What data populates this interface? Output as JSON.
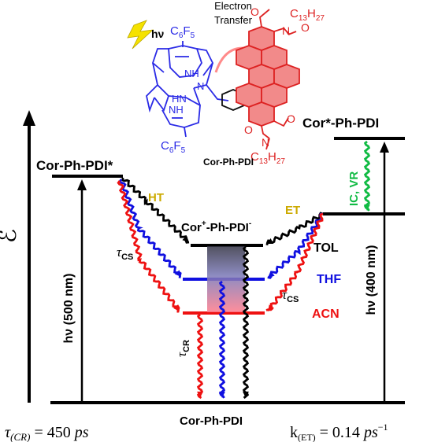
{
  "colors": {
    "black": "#000000",
    "blue": "#1010e0",
    "red": "#ee1111",
    "gold": "#ccaa00",
    "green": "#11bb44",
    "pink": "#ff8a8a",
    "porphyrin": "#2a2ae6",
    "pdi_fill": "#f28a8a",
    "pdi_stroke": "#dd2222",
    "bolt": "#f5e200"
  },
  "molecule": {
    "light_label": "hν",
    "c6f5_top": "C",
    "c6f5_top_sub": "6",
    "c6f5_top_f": "F",
    "c6f5_top_sub2": "5",
    "c6f5_bottom": "C",
    "c6f5_bottom_sub": "6",
    "c6f5_bottom_f": "F",
    "c6f5_bottom_sub2": "5",
    "nh_top": "NH",
    "nh_mid": "NH",
    "n_mid": "N",
    "hn_bot": "HN",
    "electron_transfer": "Electron",
    "electron_transfer2": "Transfer",
    "c13_top": "C",
    "c13_top_sub": "13",
    "c13_top_h": "H",
    "c13_top_sub2": "27",
    "c13_bot": "C",
    "c13_bot_sub": "13",
    "c13_bot_h": "H",
    "c13_bot_sub2": "27",
    "n_top": "N",
    "n_bot": "N",
    "o_labels": [
      "O",
      "O",
      "O",
      "O"
    ],
    "caption": "Cor-Ph-PDI"
  },
  "levels": {
    "excited_left": "Cor-Ph-PDI*",
    "excited_right": "Cor*-Ph-PDI",
    "cs_state": "Cor",
    "cs_plus": "+",
    "cs_mid": "-Ph-PDI",
    "cs_minus": "-",
    "ground": "Cor-Ph-PDI"
  },
  "labels": {
    "ht": "HT",
    "et": "ET",
    "ic_vr": "IC, VR",
    "tol": "TOL",
    "thf": "THF",
    "acn": "ACN",
    "tau_cs_left": "τ",
    "tau_cs_left_sub": "CS",
    "tau_cs_right": "τ",
    "tau_cs_right_sub": "CS",
    "tau_cr": "τ",
    "tau_cr_sub": "CR",
    "hv_500": "hν (500 nm)",
    "hv_400": "hν (400 nm)",
    "energy_axis": "ℰ"
  },
  "footer": {
    "tau_cr_value": "τ",
    "tau_cr_sub": "(CR)",
    "tau_cr_eq": " = 450 ",
    "tau_cr_unit": "ps",
    "k_et": "k",
    "k_et_sub": "(ET)",
    "k_et_eq": " = 0.14 ",
    "k_et_unit": "ps",
    "k_et_exp": "−1"
  }
}
